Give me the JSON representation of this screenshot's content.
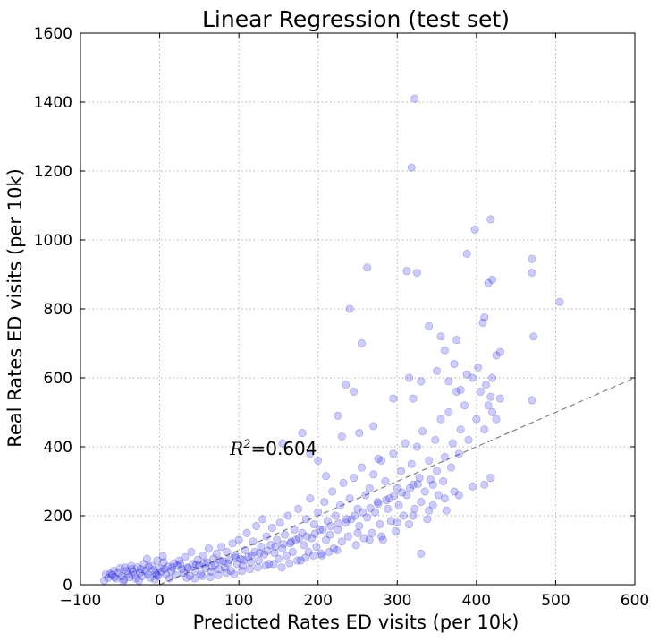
{
  "chart_data": {
    "type": "scatter",
    "title": "Linear Regression (test set)",
    "xlabel": "Predicted Rates ED visits (per 10k)",
    "ylabel": "Real Rates ED visits (per 10k)",
    "xlim": [
      -100,
      600
    ],
    "ylim": [
      0,
      1600
    ],
    "xticks": [
      -100,
      0,
      100,
      200,
      300,
      400,
      500,
      600
    ],
    "yticks": [
      0,
      200,
      400,
      600,
      800,
      1000,
      1200,
      1400,
      1600
    ],
    "xtick_labels": [
      "−100",
      "0",
      "100",
      "200",
      "300",
      "400",
      "500",
      "600"
    ],
    "ytick_labels": [
      "0",
      "200",
      "400",
      "600",
      "800",
      "1000",
      "1200",
      "1400",
      "1600"
    ],
    "grid": true,
    "point_color": "#0000ff",
    "point_opacity": 0.2,
    "reference_line": {
      "x": [
        0,
        600
      ],
      "y": [
        0,
        600
      ],
      "style": "dashed",
      "color": "#808080"
    },
    "annotation": {
      "math": "R",
      "superscript": "2",
      "text": "=0.604",
      "x": 100,
      "y": 390
    },
    "points": [
      [
        -70,
        12
      ],
      [
        -65,
        20
      ],
      [
        -60,
        28
      ],
      [
        -55,
        18
      ],
      [
        -52,
        35
      ],
      [
        -48,
        25
      ],
      [
        -45,
        15
      ],
      [
        -42,
        40
      ],
      [
        -40,
        30
      ],
      [
        -38,
        22
      ],
      [
        -35,
        45
      ],
      [
        -32,
        28
      ],
      [
        -30,
        18
      ],
      [
        -28,
        50
      ],
      [
        -25,
        35
      ],
      [
        -22,
        25
      ],
      [
        -20,
        60
      ],
      [
        -18,
        40
      ],
      [
        -15,
        30
      ],
      [
        -12,
        20
      ],
      [
        -10,
        55
      ],
      [
        -8,
        42
      ],
      [
        -5,
        35
      ],
      [
        -3,
        70
      ],
      [
        -2,
        25
      ],
      [
        0,
        48
      ],
      [
        2,
        38
      ],
      [
        5,
        65
      ],
      [
        8,
        30
      ],
      [
        10,
        52
      ],
      [
        -62,
        32
      ],
      [
        -58,
        40
      ],
      [
        -50,
        48
      ],
      [
        -46,
        10
      ],
      [
        -36,
        55
      ],
      [
        -26,
        12
      ],
      [
        -16,
        75
      ],
      [
        -6,
        15
      ],
      [
        4,
        82
      ],
      [
        12,
        18
      ],
      [
        15,
        40
      ],
      [
        18,
        62
      ],
      [
        20,
        28
      ],
      [
        22,
        55
      ],
      [
        25,
        70
      ],
      [
        28,
        45
      ],
      [
        30,
        35
      ],
      [
        32,
        80
      ],
      [
        35,
        50
      ],
      [
        38,
        25
      ],
      [
        40,
        95
      ],
      [
        42,
        60
      ],
      [
        45,
        40
      ],
      [
        48,
        72
      ],
      [
        50,
        55
      ],
      [
        52,
        30
      ],
      [
        55,
        85
      ],
      [
        58,
        48
      ],
      [
        60,
        65
      ],
      [
        62,
        105
      ],
      [
        65,
        38
      ],
      [
        68,
        75
      ],
      [
        70,
        58
      ],
      [
        72,
        90
      ],
      [
        75,
        45
      ],
      [
        78,
        110
      ],
      [
        80,
        68
      ],
      [
        82,
        50
      ],
      [
        85,
        95
      ],
      [
        88,
        72
      ],
      [
        90,
        40
      ],
      [
        92,
        120
      ],
      [
        95,
        85
      ],
      [
        98,
        60
      ],
      [
        100,
        130
      ],
      [
        102,
        75
      ],
      [
        105,
        55
      ],
      [
        108,
        100
      ],
      [
        110,
        150
      ],
      [
        112,
        80
      ],
      [
        115,
        65
      ],
      [
        118,
        125
      ],
      [
        120,
        95
      ],
      [
        122,
        170
      ],
      [
        125,
        70
      ],
      [
        128,
        110
      ],
      [
        130,
        190
      ],
      [
        132,
        88
      ],
      [
        135,
        140
      ],
      [
        138,
        60
      ],
      [
        140,
        115
      ],
      [
        142,
        165
      ],
      [
        145,
        92
      ],
      [
        148,
        130
      ],
      [
        150,
        75
      ],
      [
        152,
        180
      ],
      [
        155,
        105
      ],
      [
        158,
        145
      ],
      [
        160,
        85
      ],
      [
        162,
        200
      ],
      [
        165,
        120
      ],
      [
        168,
        95
      ],
      [
        170,
        160
      ],
      [
        172,
        130
      ],
      [
        175,
        220
      ],
      [
        178,
        70
      ],
      [
        180,
        150
      ],
      [
        182,
        115
      ],
      [
        185,
        190
      ],
      [
        188,
        95
      ],
      [
        190,
        250
      ],
      [
        192,
        135
      ],
      [
        195,
        175
      ],
      [
        198,
        110
      ],
      [
        200,
        210
      ],
      [
        202,
        160
      ],
      [
        205,
        85
      ],
      [
        208,
        240
      ],
      [
        210,
        130
      ],
      [
        212,
        185
      ],
      [
        215,
        145
      ],
      [
        218,
        270
      ],
      [
        220,
        105
      ],
      [
        222,
        200
      ],
      [
        225,
        160
      ],
      [
        228,
        230
      ],
      [
        230,
        125
      ],
      [
        232,
        295
      ],
      [
        235,
        180
      ],
      [
        238,
        140
      ],
      [
        240,
        250
      ],
      [
        242,
        190
      ],
      [
        245,
        310
      ],
      [
        248,
        115
      ],
      [
        250,
        220
      ],
      [
        252,
        170
      ],
      [
        255,
        340
      ],
      [
        258,
        135
      ],
      [
        260,
        260
      ],
      [
        262,
        195
      ],
      [
        265,
        280
      ],
      [
        268,
        150
      ],
      [
        270,
        320
      ],
      [
        272,
        210
      ],
      [
        275,
        240
      ],
      [
        278,
        175
      ],
      [
        280,
        360
      ],
      [
        282,
        130
      ],
      [
        285,
        300
      ],
      [
        288,
        220
      ],
      [
        290,
        250
      ],
      [
        292,
        185
      ],
      [
        295,
        380
      ],
      [
        298,
        155
      ],
      [
        300,
        280
      ],
      [
        302,
        230
      ],
      [
        305,
        330
      ],
      [
        308,
        200
      ],
      [
        310,
        410
      ],
      [
        312,
        260
      ],
      [
        315,
        175
      ],
      [
        318,
        350
      ],
      [
        320,
        290
      ],
      [
        322,
        220
      ],
      [
        325,
        400
      ],
      [
        328,
        310
      ],
      [
        330,
        240
      ],
      [
        332,
        445
      ],
      [
        335,
        270
      ],
      [
        338,
        190
      ],
      [
        340,
        360
      ],
      [
        342,
        305
      ],
      [
        345,
        230
      ],
      [
        348,
        420
      ],
      [
        350,
        330
      ],
      [
        352,
        260
      ],
      [
        355,
        480
      ],
      [
        358,
        300
      ],
      [
        360,
        370
      ],
      [
        362,
        215
      ],
      [
        365,
        500
      ],
      [
        368,
        340
      ],
      [
        370,
        410
      ],
      [
        372,
        270
      ],
      [
        375,
        560
      ],
      [
        378,
        380
      ],
      [
        380,
        450
      ],
      [
        385,
        520
      ],
      [
        390,
        420
      ],
      [
        395,
        600
      ],
      [
        400,
        480
      ],
      [
        405,
        560
      ],
      [
        410,
        450
      ],
      [
        415,
        520
      ],
      [
        420,
        600
      ],
      [
        425,
        480
      ],
      [
        430,
        540
      ],
      [
        412,
        580
      ],
      [
        402,
        630
      ],
      [
        388,
        610
      ],
      [
        375,
        710
      ],
      [
        355,
        720
      ],
      [
        360,
        680
      ],
      [
        340,
        750
      ],
      [
        325,
        905
      ],
      [
        312,
        910
      ],
      [
        318,
        1210
      ],
      [
        322,
        1410
      ],
      [
        388,
        960
      ],
      [
        398,
        1030
      ],
      [
        418,
        1060
      ],
      [
        420,
        885
      ],
      [
        415,
        875
      ],
      [
        410,
        775
      ],
      [
        470,
        945
      ],
      [
        470,
        905
      ],
      [
        472,
        720
      ],
      [
        505,
        820
      ],
      [
        240,
        800
      ],
      [
        262,
        920
      ],
      [
        255,
        700
      ],
      [
        245,
        560
      ],
      [
        235,
        580
      ],
      [
        295,
        540
      ],
      [
        320,
        540
      ],
      [
        330,
        590
      ],
      [
        350,
        620
      ],
      [
        365,
        590
      ],
      [
        372,
        640
      ],
      [
        380,
        565
      ],
      [
        425,
        665
      ],
      [
        408,
        760
      ],
      [
        430,
        675
      ],
      [
        418,
        545
      ],
      [
        420,
        500
      ],
      [
        470,
        535
      ],
      [
        418,
        310
      ],
      [
        410,
        290
      ],
      [
        330,
        90
      ],
      [
        315,
        600
      ],
      [
        -68,
        30
      ],
      [
        -57,
        22
      ],
      [
        -44,
        50
      ],
      [
        -34,
        38
      ],
      [
        -24,
        45
      ],
      [
        -14,
        52
      ],
      [
        -4,
        28
      ],
      [
        6,
        45
      ],
      [
        16,
        50
      ],
      [
        26,
        60
      ],
      [
        36,
        48
      ],
      [
        46,
        58
      ],
      [
        56,
        62
      ],
      [
        66,
        52
      ],
      [
        76,
        70
      ],
      [
        86,
        62
      ],
      [
        96,
        78
      ],
      [
        106,
        72
      ],
      [
        116,
        85
      ],
      [
        126,
        92
      ],
      [
        136,
        98
      ],
      [
        146,
        110
      ],
      [
        156,
        118
      ],
      [
        166,
        125
      ],
      [
        176,
        135
      ],
      [
        186,
        140
      ],
      [
        196,
        148
      ],
      [
        206,
        160
      ],
      [
        216,
        170
      ],
      [
        226,
        178
      ],
      [
        236,
        190
      ],
      [
        246,
        200
      ],
      [
        256,
        210
      ],
      [
        266,
        222
      ],
      [
        276,
        235
      ],
      [
        286,
        245
      ],
      [
        296,
        258
      ],
      [
        306,
        268
      ],
      [
        316,
        280
      ],
      [
        326,
        292
      ],
      [
        34,
        20
      ],
      [
        44,
        18
      ],
      [
        54,
        25
      ],
      [
        64,
        22
      ],
      [
        74,
        28
      ],
      [
        84,
        35
      ],
      [
        94,
        30
      ],
      [
        104,
        40
      ],
      [
        114,
        45
      ],
      [
        124,
        50
      ],
      [
        134,
        55
      ],
      [
        144,
        60
      ],
      [
        154,
        50
      ],
      [
        164,
        62
      ],
      [
        174,
        70
      ],
      [
        184,
        78
      ],
      [
        194,
        85
      ],
      [
        204,
        90
      ],
      [
        214,
        95
      ],
      [
        224,
        100
      ],
      [
        155,
        410
      ],
      [
        180,
        440
      ],
      [
        190,
        380
      ],
      [
        200,
        360
      ],
      [
        210,
        315
      ],
      [
        225,
        490
      ],
      [
        230,
        430
      ],
      [
        252,
        440
      ],
      [
        270,
        460
      ],
      [
        276,
        365
      ],
      [
        250,
        150
      ],
      [
        265,
        130
      ],
      [
        280,
        140
      ],
      [
        300,
        180
      ],
      [
        320,
        200
      ],
      [
        340,
        215
      ],
      [
        360,
        250
      ],
      [
        378,
        260
      ],
      [
        395,
        285
      ],
      [
        345,
        290
      ]
    ]
  }
}
